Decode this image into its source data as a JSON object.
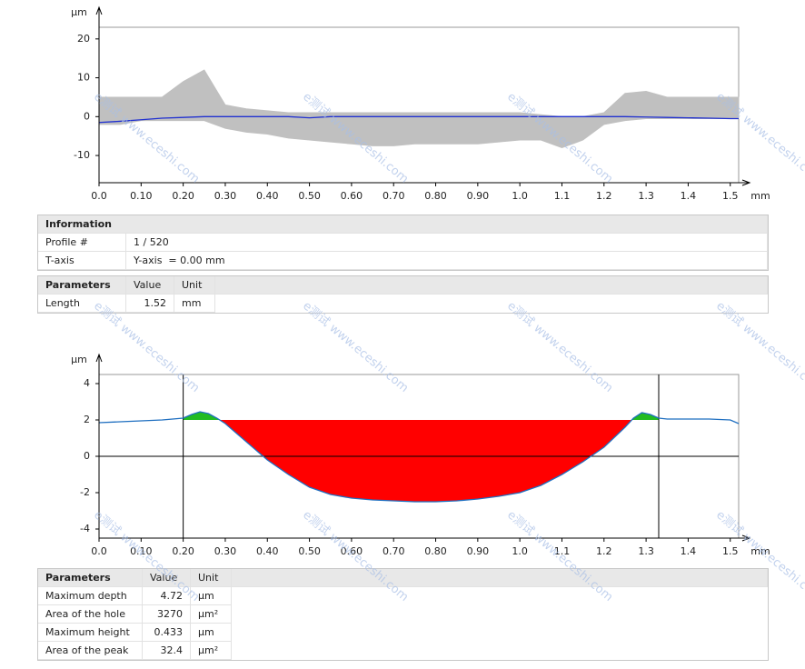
{
  "chart_data": [
    {
      "type": "line",
      "x_unit": "mm",
      "y_unit": "µm",
      "x": [
        0,
        0.05,
        0.1,
        0.15,
        0.2,
        0.25,
        0.3,
        0.35,
        0.4,
        0.45,
        0.5,
        0.55,
        0.6,
        0.65,
        0.7,
        0.75,
        0.8,
        0.85,
        0.9,
        0.95,
        1.0,
        1.05,
        1.1,
        1.15,
        1.2,
        1.25,
        1.3,
        1.35,
        1.4,
        1.45,
        1.5,
        1.52
      ],
      "band": {
        "color": "#c0c0c0",
        "upper": [
          5,
          5,
          5,
          5,
          9,
          12,
          3,
          2,
          1.5,
          1,
          1,
          1,
          1,
          1,
          1,
          1,
          1,
          1,
          1,
          1,
          1,
          0.5,
          0,
          0,
          1,
          6,
          6.5,
          5,
          5,
          5,
          5,
          5
        ],
        "lower": [
          -2,
          -2,
          -1,
          -1,
          -1,
          -1,
          -3,
          -4,
          -4.5,
          -5.5,
          -6,
          -6.5,
          -7,
          -7.5,
          -7.5,
          -7,
          -7,
          -7,
          -7,
          -6.5,
          -6,
          -6,
          -8,
          -6,
          -2,
          -1,
          -0.5,
          -0.5,
          -0.5,
          -0.5,
          -0.5,
          -0.5
        ]
      },
      "series": [
        {
          "color": "#2030d0",
          "values": [
            -1.5,
            -1.2,
            -0.8,
            -0.4,
            -0.2,
            0,
            0,
            0,
            0,
            0,
            -0.3,
            0,
            0,
            0,
            0,
            0,
            0,
            0,
            0,
            0,
            0,
            0,
            0,
            0,
            0,
            0,
            -0.1,
            -0.2,
            -0.3,
            -0.4,
            -0.5,
            -0.5
          ]
        }
      ],
      "xlim": [
        0,
        1.52
      ],
      "ylim": [
        -17,
        23
      ],
      "xticks": [
        {
          "value": 0,
          "label": "0.0"
        },
        {
          "value": 0.1,
          "label": "0.10"
        },
        {
          "value": 0.2,
          "label": "0.20"
        },
        {
          "value": 0.3,
          "label": "0.30"
        },
        {
          "value": 0.4,
          "label": "0.40"
        },
        {
          "value": 0.5,
          "label": "0.50"
        },
        {
          "value": 0.6,
          "label": "0.60"
        },
        {
          "value": 0.7,
          "label": "0.70"
        },
        {
          "value": 0.8,
          "label": "0.80"
        },
        {
          "value": 0.9,
          "label": "0.90"
        },
        {
          "value": 1,
          "label": "1.0"
        },
        1.1,
        1.2,
        1.3,
        1.4,
        1.5
      ],
      "yticks": [
        20,
        10,
        0,
        -10
      ]
    },
    {
      "type": "area",
      "x_unit": "mm",
      "y_unit": "µm",
      "x": [
        0,
        0.05,
        0.1,
        0.15,
        0.2,
        0.22,
        0.24,
        0.26,
        0.28,
        0.3,
        0.35,
        0.4,
        0.45,
        0.5,
        0.55,
        0.6,
        0.65,
        0.7,
        0.75,
        0.8,
        0.85,
        0.9,
        0.95,
        1.0,
        1.05,
        1.1,
        1.15,
        1.2,
        1.25,
        1.27,
        1.29,
        1.31,
        1.33,
        1.35,
        1.4,
        1.45,
        1.5,
        1.52
      ],
      "series": [
        {
          "color": "#1f6fc0",
          "values": [
            1.85,
            1.9,
            1.95,
            2.0,
            2.1,
            2.3,
            2.45,
            2.35,
            2.1,
            1.8,
            0.8,
            -0.2,
            -1.0,
            -1.7,
            -2.1,
            -2.3,
            -2.4,
            -2.45,
            -2.5,
            -2.5,
            -2.45,
            -2.35,
            -2.2,
            -2.0,
            -1.6,
            -1.0,
            -0.3,
            0.5,
            1.6,
            2.1,
            2.4,
            2.3,
            2.1,
            2.05,
            2.05,
            2.05,
            2.0,
            1.8
          ]
        }
      ],
      "reference": 2.0,
      "hole_color": "#ff0000",
      "peak_color": "#22bb22",
      "cursors": [
        0.2,
        1.33
      ],
      "zero_line": true,
      "xlim": [
        0,
        1.52
      ],
      "ylim": [
        -4.5,
        4.5
      ],
      "xticks": [
        {
          "value": 0,
          "label": "0.0"
        },
        {
          "value": 0.1,
          "label": "0.10"
        },
        {
          "value": 0.2,
          "label": "0.20"
        },
        {
          "value": 0.3,
          "label": "0.30"
        },
        {
          "value": 0.4,
          "label": "0.40"
        },
        {
          "value": 0.5,
          "label": "0.50"
        },
        {
          "value": 0.6,
          "label": "0.60"
        },
        {
          "value": 0.7,
          "label": "0.70"
        },
        {
          "value": 0.8,
          "label": "0.80"
        },
        {
          "value": 0.9,
          "label": "0.90"
        },
        {
          "value": 1,
          "label": "1.0"
        },
        1.1,
        1.2,
        1.3,
        1.4,
        1.5
      ],
      "yticks": [
        4,
        2,
        0,
        -2,
        -4
      ]
    }
  ],
  "info": {
    "title": "Information",
    "rows": [
      [
        "Profile #",
        "1 / 520"
      ],
      [
        "T-axis",
        "Y-axis  = 0.00 mm"
      ]
    ]
  },
  "parameters": {
    "headers": [
      "Parameters",
      "Value",
      "Unit"
    ],
    "rows": [
      [
        "Length",
        1.52,
        "mm"
      ]
    ]
  },
  "results": {
    "headers": [
      "Parameters",
      "Value",
      "Unit"
    ],
    "rows": [
      [
        "Maximum depth",
        4.72,
        "µm"
      ],
      [
        "Area of the hole",
        3270,
        "µm²"
      ],
      [
        "Maximum height",
        0.433,
        "µm"
      ],
      [
        "Area of the peak",
        32.4,
        "µm²"
      ]
    ]
  },
  "watermark": "e测试 www.eceshi.com"
}
